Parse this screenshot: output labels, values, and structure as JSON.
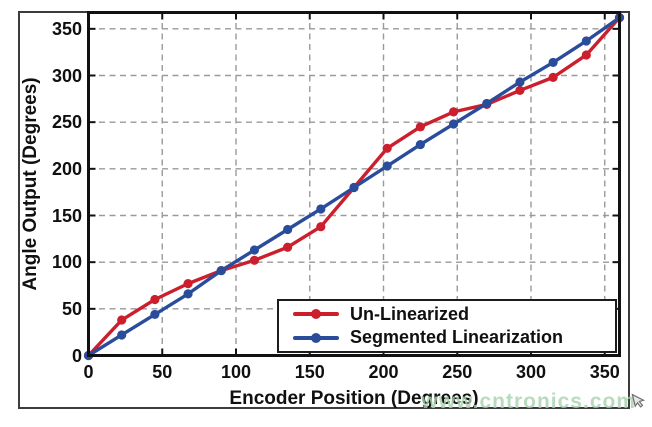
{
  "figure": {
    "watermark_text": "www.cntronics.com",
    "watermark_color": "#a7d3ad"
  },
  "chart_data": {
    "type": "line",
    "title": "",
    "xlabel": "Encoder Position (Degrees)",
    "ylabel": "Angle Output (Degrees)",
    "xlim": [
      0,
      360
    ],
    "ylim": [
      0,
      367.5
    ],
    "xticks": [
      0,
      50,
      100,
      150,
      200,
      250,
      300,
      350
    ],
    "yticks": [
      0,
      50,
      100,
      150,
      200,
      250,
      300,
      350
    ],
    "grid": true,
    "grid_style": "dashed",
    "grid_color": "#9a9a9a",
    "axis_color": "#111111",
    "legend_position": "inside lower right",
    "marker": "circle",
    "x": [
      0,
      22.5,
      45,
      67.5,
      90,
      112.5,
      135,
      157.5,
      180,
      202.5,
      225,
      247.5,
      270,
      292.5,
      315,
      337.5,
      360
    ],
    "series": [
      {
        "name": "Un-Linearized",
        "color": "#cc1f2d",
        "values": [
          0,
          38,
          60,
          77,
          91,
          102,
          116,
          138,
          180,
          222,
          245,
          261,
          269,
          284,
          298,
          322,
          362
        ]
      },
      {
        "name": "Segmented Linearization",
        "color": "#2a4d9b",
        "values": [
          0,
          22,
          44,
          66,
          91,
          113,
          135,
          157,
          180,
          203,
          226,
          248,
          270,
          293,
          314,
          337,
          362
        ]
      }
    ]
  }
}
